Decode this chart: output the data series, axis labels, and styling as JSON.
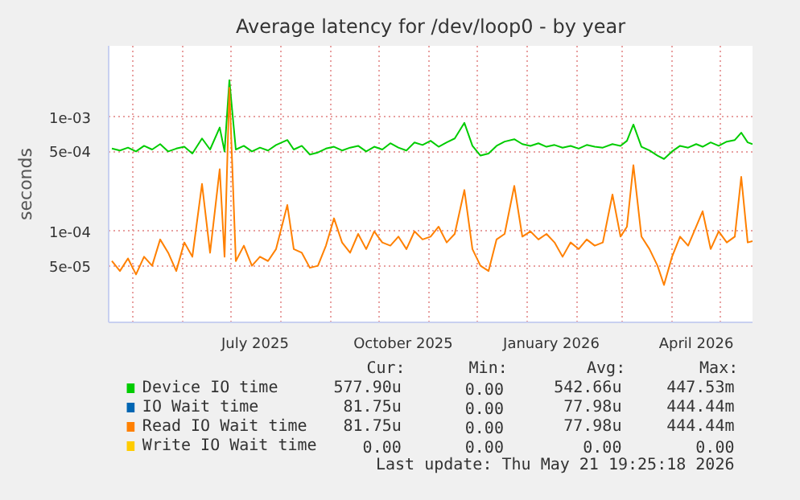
{
  "chart_data": {
    "type": "line",
    "title": "Average latency for /dev/loop0 - by year",
    "ylabel": "seconds",
    "log": "y",
    "grid": true,
    "legend": "bottom",
    "line_style": "solid",
    "marker": "none",
    "xlim": [
      "2025-04-16",
      "2026-05-21"
    ],
    "ylim": [
      1.6e-05,
      0.0042
    ],
    "yticks": [
      {
        "value": 5e-05,
        "label": "5e-05"
      },
      {
        "value": 0.0001,
        "label": "1e-04"
      },
      {
        "value": 0.0005,
        "label": "5e-04"
      },
      {
        "value": 0.001,
        "label": "1e-03"
      }
    ],
    "xticks": [
      {
        "value": "2025-05-01",
        "label": null
      },
      {
        "value": "2025-06-01",
        "label": null
      },
      {
        "value": "2025-07-01",
        "label": null
      },
      {
        "value": "2025-07-16",
        "label": "July 2025"
      },
      {
        "value": "2025-08-01",
        "label": null
      },
      {
        "value": "2025-09-01",
        "label": null
      },
      {
        "value": "2025-10-01",
        "label": null
      },
      {
        "value": "2025-10-16",
        "label": "October 2025"
      },
      {
        "value": "2025-11-01",
        "label": null
      },
      {
        "value": "2025-12-01",
        "label": null
      },
      {
        "value": "2026-01-01",
        "label": null
      },
      {
        "value": "2026-01-16",
        "label": "January 2026"
      },
      {
        "value": "2026-02-01",
        "label": null
      },
      {
        "value": "2026-03-01",
        "label": null
      },
      {
        "value": "2026-04-01",
        "label": null
      },
      {
        "value": "2026-04-16",
        "label": "April 2026"
      },
      {
        "value": "2026-05-01",
        "label": null
      }
    ],
    "x": [
      "2025-04-18",
      "2025-04-23",
      "2025-04-28",
      "2025-05-03",
      "2025-05-08",
      "2025-05-13",
      "2025-05-18",
      "2025-05-23",
      "2025-05-28",
      "2025-06-02",
      "2025-06-07",
      "2025-06-13",
      "2025-06-18",
      "2025-06-24",
      "2025-06-27",
      "2025-06-30",
      "2025-07-04",
      "2025-07-09",
      "2025-07-14",
      "2025-07-19",
      "2025-07-24",
      "2025-07-29",
      "2025-08-05",
      "2025-08-09",
      "2025-08-14",
      "2025-08-19",
      "2025-08-24",
      "2025-08-29",
      "2025-09-03",
      "2025-09-08",
      "2025-09-13",
      "2025-09-18",
      "2025-09-23",
      "2025-09-28",
      "2025-10-03",
      "2025-10-08",
      "2025-10-13",
      "2025-10-18",
      "2025-10-23",
      "2025-10-28",
      "2025-11-02",
      "2025-11-07",
      "2025-11-12",
      "2025-11-17",
      "2025-11-23",
      "2025-11-28",
      "2025-12-03",
      "2025-12-08",
      "2025-12-13",
      "2025-12-18",
      "2025-12-24",
      "2025-12-29",
      "2026-01-03",
      "2026-01-08",
      "2026-01-13",
      "2026-01-18",
      "2026-01-23",
      "2026-01-28",
      "2026-02-02",
      "2026-02-07",
      "2026-02-12",
      "2026-02-17",
      "2026-02-23",
      "2026-02-28",
      "2026-03-04",
      "2026-03-08",
      "2026-03-13",
      "2026-03-18",
      "2026-03-23",
      "2026-03-27",
      "2026-04-01",
      "2026-04-06",
      "2026-04-11",
      "2026-04-16",
      "2026-04-20",
      "2026-04-25",
      "2026-04-30",
      "2026-05-05",
      "2026-05-10",
      "2026-05-14",
      "2026-05-18",
      "2026-05-21"
    ],
    "series": [
      {
        "name": "Device IO time",
        "color": "#00cc00",
        "values": [
          0.00053,
          0.00051,
          0.00054,
          0.0005,
          0.00056,
          0.00052,
          0.00058,
          0.0005,
          0.00053,
          0.00055,
          0.00048,
          0.00065,
          0.00052,
          0.00081,
          0.0005,
          0.0021,
          0.00052,
          0.00056,
          0.0005,
          0.00054,
          0.00051,
          0.00057,
          0.00063,
          0.00052,
          0.00056,
          0.00047,
          0.00049,
          0.00053,
          0.00055,
          0.00051,
          0.00054,
          0.00056,
          0.0005,
          0.00055,
          0.00052,
          0.00059,
          0.00054,
          0.00051,
          0.0006,
          0.00057,
          0.00062,
          0.00055,
          0.0006,
          0.00065,
          0.00089,
          0.00056,
          0.00046,
          0.00048,
          0.00056,
          0.00061,
          0.00064,
          0.00058,
          0.00056,
          0.00059,
          0.00055,
          0.00057,
          0.00054,
          0.00056,
          0.00053,
          0.00057,
          0.00055,
          0.00054,
          0.00058,
          0.00056,
          0.00062,
          0.00086,
          0.00055,
          0.00051,
          0.00046,
          0.00043,
          0.0005,
          0.00056,
          0.00054,
          0.00058,
          0.00055,
          0.0006,
          0.00056,
          0.00061,
          0.00063,
          0.00073,
          0.0006,
          0.00058
        ]
      },
      {
        "name": "IO Wait time",
        "color": "#0066b3",
        "values": [
          null,
          null,
          null,
          null,
          null,
          null,
          null,
          null,
          null,
          null,
          null,
          null,
          null,
          null,
          null,
          null,
          null,
          null,
          null,
          null,
          null,
          null,
          null,
          null,
          null,
          null,
          null,
          null,
          null,
          null,
          null,
          null,
          null,
          null,
          null,
          null,
          null,
          null,
          null,
          null,
          null,
          null,
          null,
          null,
          null,
          null,
          null,
          null,
          null,
          null,
          null,
          null,
          null,
          null,
          null,
          null,
          null,
          null,
          null,
          null,
          null,
          null,
          null,
          null,
          null,
          null,
          null,
          null,
          null,
          null,
          null,
          null,
          null,
          null,
          null,
          null,
          null,
          null,
          null,
          null,
          null,
          null
        ]
      },
      {
        "name": "Read IO Wait time",
        "color": "#ff8000",
        "values": [
          5.5e-05,
          4.5e-05,
          5.8e-05,
          4.2e-05,
          6e-05,
          5e-05,
          8.5e-05,
          6.5e-05,
          4.5e-05,
          8e-05,
          6e-05,
          0.00026,
          6.5e-05,
          0.00035,
          6e-05,
          0.0018,
          5.5e-05,
          7.5e-05,
          5e-05,
          6e-05,
          5.5e-05,
          7e-05,
          0.00017,
          7e-05,
          6.5e-05,
          4.8e-05,
          5e-05,
          7.5e-05,
          0.00013,
          8e-05,
          6.5e-05,
          9.5e-05,
          7e-05,
          0.0001,
          8e-05,
          7.5e-05,
          9e-05,
          7e-05,
          0.0001,
          8.5e-05,
          9e-05,
          0.00011,
          8e-05,
          9.5e-05,
          0.00023,
          7e-05,
          5e-05,
          4.5e-05,
          8.5e-05,
          9.5e-05,
          0.00025,
          9e-05,
          0.0001,
          8.5e-05,
          9.5e-05,
          8e-05,
          6e-05,
          8e-05,
          7e-05,
          8.5e-05,
          7.5e-05,
          8e-05,
          0.00021,
          9e-05,
          0.00011,
          0.00038,
          9e-05,
          7e-05,
          5e-05,
          3.4e-05,
          6e-05,
          9e-05,
          7.5e-05,
          0.00011,
          0.00015,
          7e-05,
          0.0001,
          8e-05,
          9e-05,
          0.0003,
          8e-05,
          8.2e-05
        ]
      },
      {
        "name": "Write IO Wait time",
        "color": "#ffcc00",
        "values": [
          null,
          null,
          null,
          null,
          null,
          null,
          null,
          null,
          null,
          null,
          null,
          null,
          null,
          null,
          null,
          null,
          null,
          null,
          null,
          null,
          null,
          null,
          null,
          null,
          null,
          null,
          null,
          null,
          null,
          null,
          null,
          null,
          null,
          null,
          null,
          null,
          null,
          null,
          null,
          null,
          null,
          null,
          null,
          null,
          null,
          null,
          null,
          null,
          null,
          null,
          null,
          null,
          null,
          null,
          null,
          null,
          null,
          null,
          null,
          null,
          null,
          null,
          null,
          null,
          null,
          null,
          null,
          null,
          null,
          null,
          null,
          null,
          null,
          null,
          null,
          null,
          null,
          null,
          null,
          null,
          null,
          null
        ]
      }
    ],
    "annotations": [
      "Cur:",
      "Min:",
      "Avg:",
      "Max:",
      "577.90u",
      "0.00",
      "542.66u",
      "447.53m",
      "81.75u",
      "0.00",
      "77.98u",
      "444.44m",
      "81.75u",
      "0.00",
      "77.98u",
      "444.44m",
      "0.00",
      "0.00",
      "0.00",
      "0.00",
      "Last update: Thu May 21 19:25:18 2026"
    ]
  }
}
